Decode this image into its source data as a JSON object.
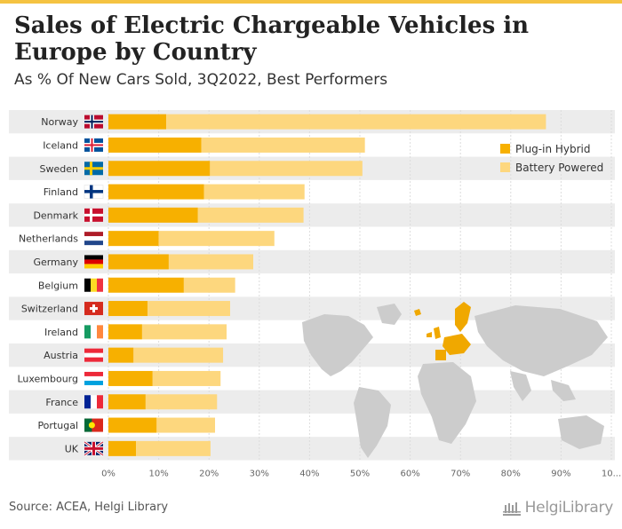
{
  "header": {
    "title": "Sales of Electric Chargeable Vehicles in Europe by Country",
    "subtitle": "As % Of New Cars Sold, 3Q2022, Best Performers"
  },
  "footer": {
    "source": "Source: ACEA, Helgi Library",
    "logo_text": "HelgiLibrary"
  },
  "colors": {
    "plug_in_hybrid": "#f7b000",
    "battery_powered": "#fdd77e",
    "row_band": "#ececec",
    "map_land": "#cccccc",
    "map_highlight": "#f0a800"
  },
  "chart_data": {
    "type": "bar",
    "orientation": "horizontal",
    "stacked": true,
    "categories": [
      "Norway",
      "Iceland",
      "Sweden",
      "Finland",
      "Denmark",
      "Netherlands",
      "Germany",
      "Belgium",
      "Switzerland",
      "Ireland",
      "Austria",
      "Luxembourg",
      "France",
      "Portugal",
      "UK"
    ],
    "flags": [
      "norway-flag",
      "iceland-flag",
      "sweden-flag",
      "finland-flag",
      "denmark-flag",
      "netherlands-flag",
      "germany-flag",
      "belgium-flag",
      "switzerland-flag",
      "ireland-flag",
      "austria-flag",
      "luxembourg-flag",
      "france-flag",
      "portugal-flag",
      "uk-flag"
    ],
    "series": [
      {
        "name": "Plug-in Hybrid",
        "values": [
          11.5,
          18.5,
          20.2,
          19.0,
          17.8,
          10.0,
          12.0,
          15.0,
          7.8,
          6.7,
          5.0,
          8.8,
          7.4,
          9.6,
          5.5
        ]
      },
      {
        "name": "Battery Powered",
        "values": [
          75.5,
          32.5,
          30.3,
          20.0,
          21.0,
          23.0,
          16.8,
          10.2,
          16.4,
          16.8,
          17.8,
          13.5,
          14.2,
          11.6,
          14.8
        ]
      }
    ],
    "xlim": [
      0,
      100
    ],
    "xticks": [
      "0%",
      "10%",
      "20%",
      "30%",
      "40%",
      "50%",
      "60%",
      "70%",
      "80%",
      "90%",
      "10..."
    ],
    "legend_position": "top-right",
    "grid": true
  }
}
